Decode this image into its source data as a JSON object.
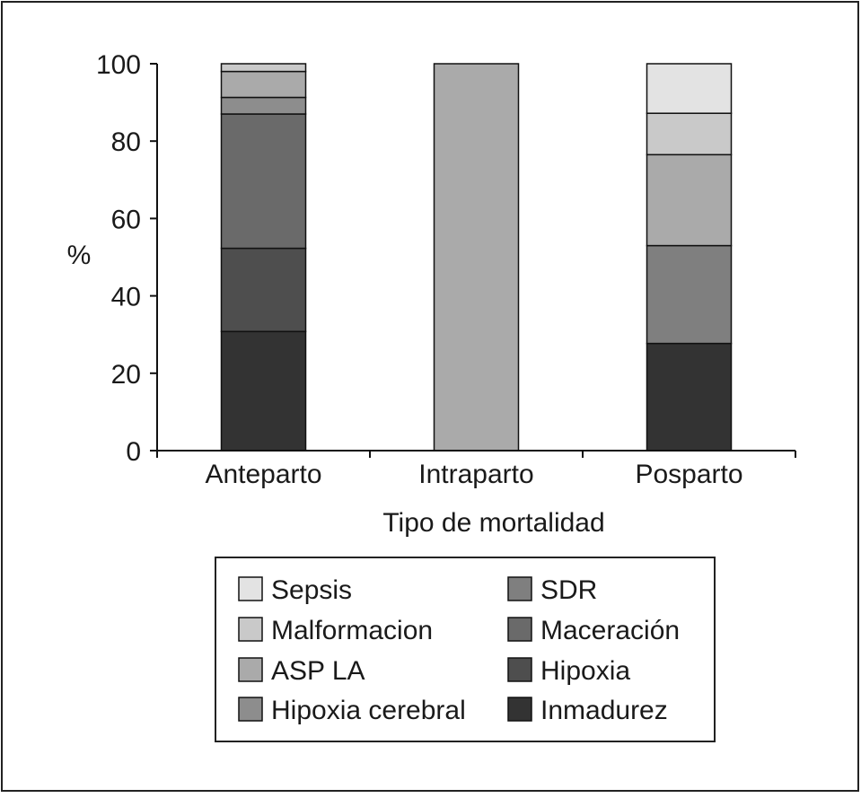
{
  "chart_data": {
    "type": "bar",
    "stacked": true,
    "categories": [
      "Anteparto",
      "Intraparto",
      "Posparto"
    ],
    "xlabel": "Tipo de mortalidad",
    "ylabel": "%",
    "ylim": [
      0,
      100
    ],
    "yticks": [
      0,
      20,
      40,
      60,
      80,
      100
    ],
    "grid": false,
    "legend_position": "bottom",
    "series": [
      {
        "name": "Inmadurez",
        "color": "#333333",
        "values": [
          30.8,
          0,
          27.7
        ]
      },
      {
        "name": "Hipoxia",
        "color": "#4e4e4e",
        "values": [
          21.5,
          0,
          0
        ]
      },
      {
        "name": "Maceración",
        "color": "#6a6a6a",
        "values": [
          34.7,
          0,
          0
        ]
      },
      {
        "name": "SDR",
        "color": "#7f7f7f",
        "values": [
          0,
          0,
          25.3
        ]
      },
      {
        "name": "Hipoxia cerebral",
        "color": "#8d8d8d",
        "values": [
          4.3,
          0,
          0
        ]
      },
      {
        "name": "ASP LA",
        "color": "#aaaaaa",
        "values": [
          6.7,
          100,
          23.5
        ]
      },
      {
        "name": "Malformacion",
        "color": "#c9c9c9",
        "values": [
          2.0,
          0,
          10.7
        ]
      },
      {
        "name": "Sepsis",
        "color": "#e3e3e3",
        "values": [
          0,
          0,
          12.8
        ]
      }
    ],
    "legend_rows": [
      [
        "Sepsis",
        "SDR"
      ],
      [
        "Malformacion",
        "Maceración"
      ],
      [
        "ASP LA",
        "Hipoxia"
      ],
      [
        "Hipoxia cerebral",
        "Inmadurez"
      ]
    ]
  }
}
